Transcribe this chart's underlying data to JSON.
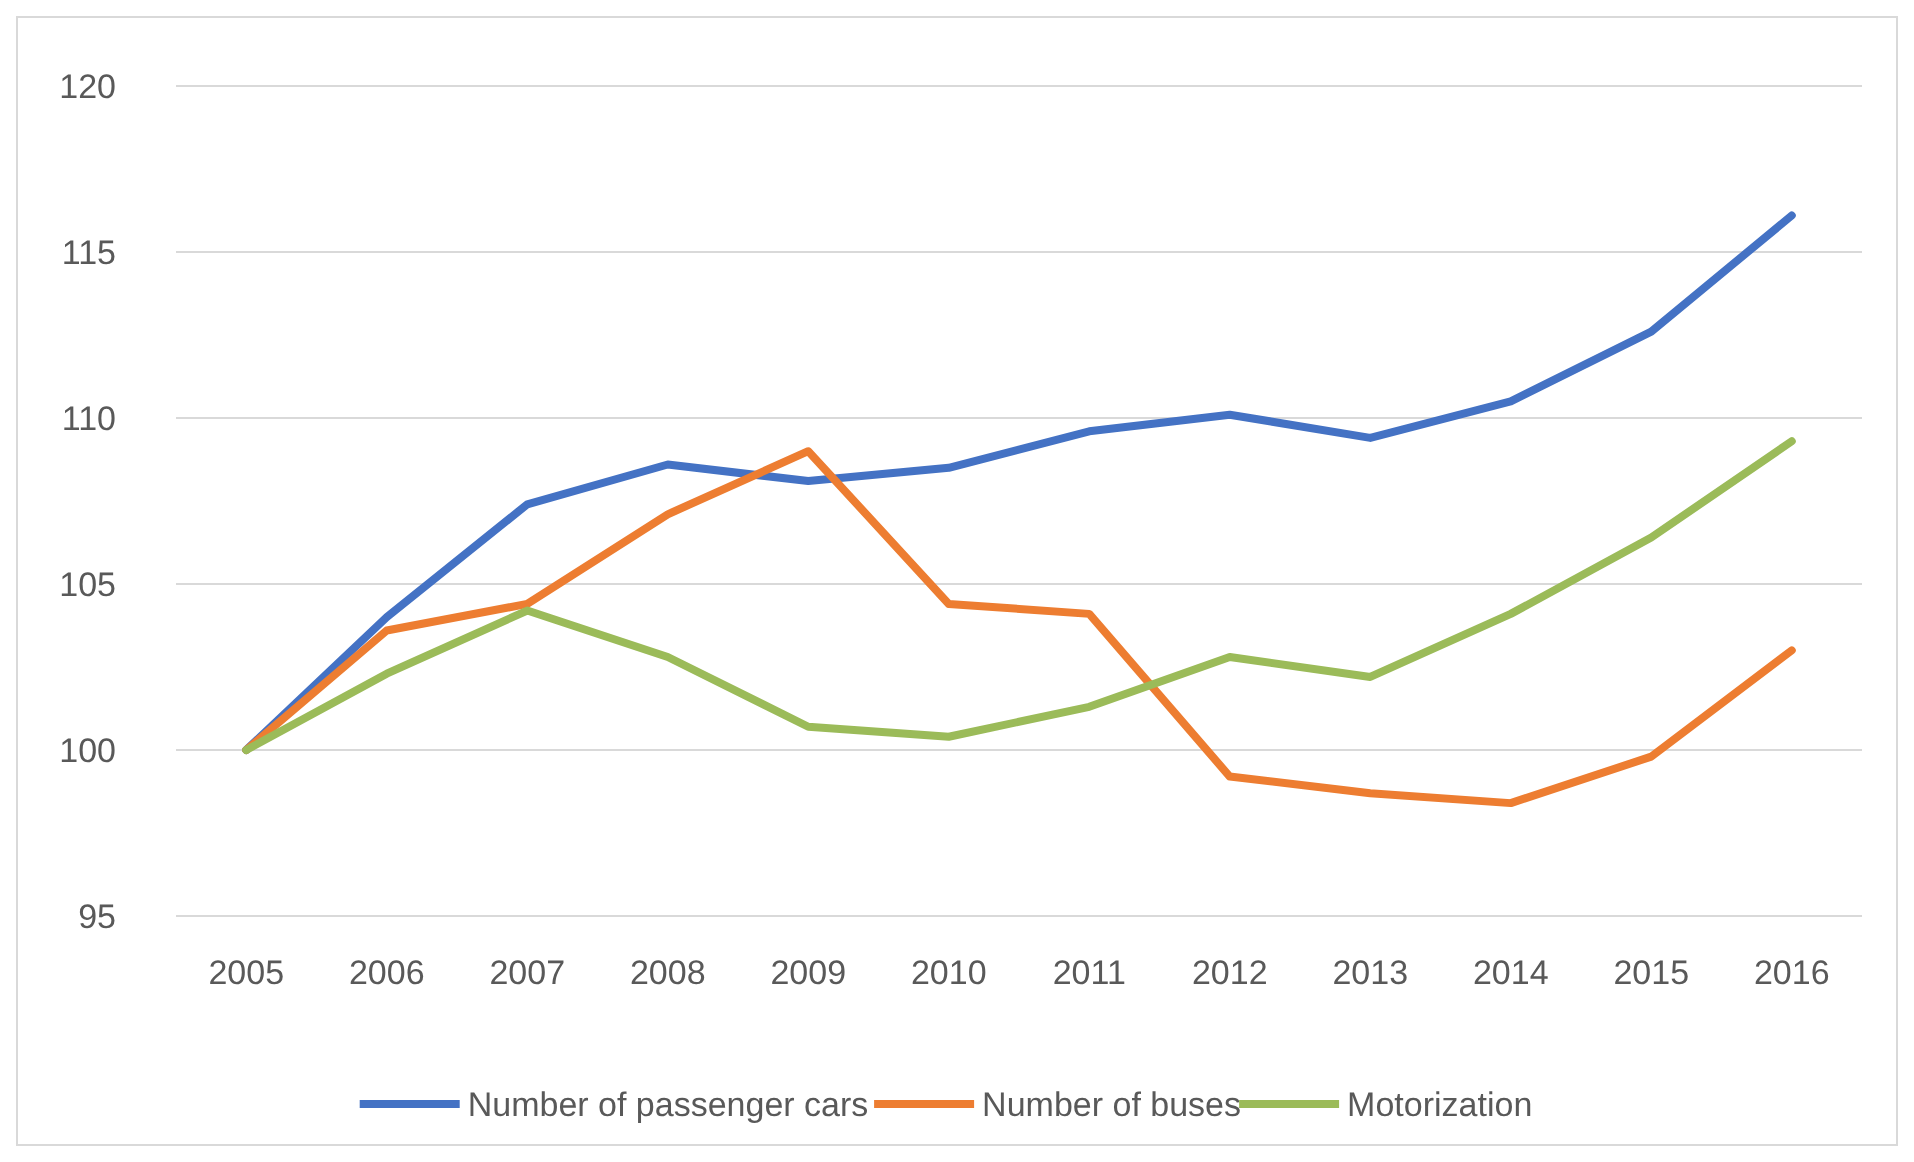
{
  "chart_data": {
    "type": "line",
    "categories": [
      "2005",
      "2006",
      "2007",
      "2008",
      "2009",
      "2010",
      "2011",
      "2012",
      "2013",
      "2014",
      "2015",
      "2016"
    ],
    "series": [
      {
        "name": "Number of passenger cars",
        "color": "#4472c4",
        "values": [
          100,
          104.0,
          107.4,
          108.6,
          108.1,
          108.5,
          109.6,
          110.1,
          109.4,
          110.5,
          112.6,
          116.1
        ]
      },
      {
        "name": "Number of buses",
        "color": "#ed7d31",
        "values": [
          100,
          103.6,
          104.4,
          107.1,
          109.0,
          104.4,
          104.1,
          99.2,
          98.7,
          98.4,
          99.8,
          103.0
        ]
      },
      {
        "name": "Motorization",
        "color": "#9bbb59",
        "values": [
          100,
          102.3,
          104.2,
          102.8,
          100.7,
          100.4,
          101.3,
          102.8,
          102.2,
          104.1,
          106.4,
          109.3
        ]
      }
    ],
    "ylim": [
      95,
      120
    ],
    "yticks": [
      95,
      100,
      105,
      110,
      115,
      120
    ],
    "grid": "y",
    "legend": "bottom",
    "marker": "none",
    "line_style": "solid"
  }
}
